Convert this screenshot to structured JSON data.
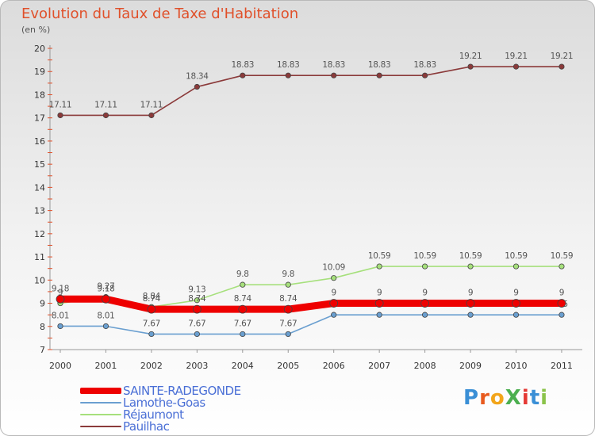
{
  "title": "Evolution du Taux de Taxe d'Habitation",
  "subtitle": "(en %)",
  "logo": {
    "text": "ProXiti",
    "letters": [
      {
        "char": "P",
        "color": "#3a8fd6"
      },
      {
        "char": "r",
        "color": "#e85a1e"
      },
      {
        "char": "o",
        "color": "#f2a51a"
      },
      {
        "char": "X",
        "color": "#4caf50"
      },
      {
        "char": "i",
        "color": "#e53935"
      },
      {
        "char": "t",
        "color": "#3a8fd6"
      },
      {
        "char": "i",
        "color": "#8bc34a"
      }
    ]
  },
  "chart_data": {
    "type": "line",
    "x": [
      "2000",
      "2001",
      "2002",
      "2003",
      "2004",
      "2005",
      "2006",
      "2007",
      "2008",
      "2009",
      "2010",
      "2011"
    ],
    "ylim": [
      7,
      20
    ],
    "yticks": [
      7,
      8,
      9,
      10,
      11,
      12,
      13,
      14,
      15,
      16,
      17,
      18,
      19,
      20
    ],
    "grid": false,
    "legend_position": "bottom-left",
    "series": [
      {
        "name": "SAINTE-RADEGONDE",
        "color": "#ee0000",
        "values": [
          9.18,
          9.18,
          8.74,
          8.74,
          8.74,
          8.74,
          9,
          9,
          9,
          9,
          9,
          9
        ],
        "labels": [
          "9.18",
          "9.18",
          "8.74",
          "8.74",
          "8.74",
          "8.74",
          "9",
          "9",
          "9",
          "9",
          "9",
          "9"
        ]
      },
      {
        "name": "Lamothe-Goas",
        "color": "#6a9fd0",
        "values": [
          8.01,
          8.01,
          7.67,
          7.67,
          7.67,
          7.67,
          8.5,
          8.5,
          8.5,
          8.5,
          8.5,
          8.5
        ],
        "labels": [
          "8.01",
          "8.01",
          "7.67",
          "7.67",
          "7.67",
          "7.67",
          "8.5",
          "8.5",
          "8.5",
          "8.5",
          "8.5",
          "8.5"
        ]
      },
      {
        "name": "Réjaumont",
        "color": "#a6e07c",
        "values": [
          9,
          9.27,
          8.84,
          9.13,
          9.8,
          9.8,
          10.09,
          10.59,
          10.59,
          10.59,
          10.59,
          10.59
        ],
        "labels": [
          "9",
          "9.27",
          "8.84",
          "9.13",
          "9.8",
          "9.8",
          "10.09",
          "10.59",
          "10.59",
          "10.59",
          "10.59",
          "10.59"
        ]
      },
      {
        "name": "Pauilhac",
        "color": "#8b3a3a",
        "values": [
          17.11,
          17.11,
          17.11,
          18.34,
          18.83,
          18.83,
          18.83,
          18.83,
          18.83,
          19.21,
          19.21,
          19.21
        ],
        "labels": [
          "17.11",
          "17.11",
          "17.11",
          "18.34",
          "18.83",
          "18.83",
          "18.83",
          "18.83",
          "18.83",
          "19.21",
          "19.21",
          "19.21"
        ]
      }
    ]
  }
}
